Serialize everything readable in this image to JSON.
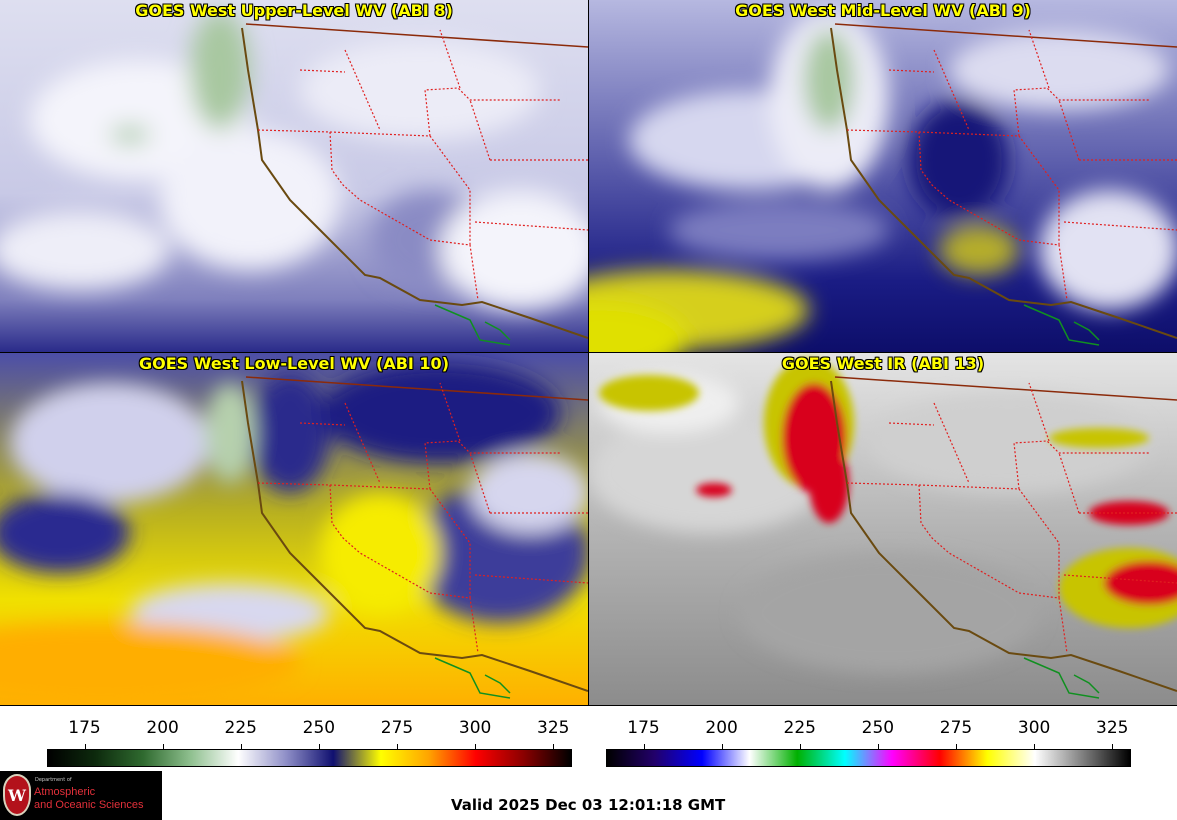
{
  "panels": [
    {
      "title": "GOES West Upper-Level WV (ABI 8)",
      "palette": "wv_upper"
    },
    {
      "title": "GOES West Mid-Level WV (ABI 9)",
      "palette": "wv_mid"
    },
    {
      "title": "GOES West Low-Level WV (ABI 10)",
      "palette": "wv_low"
    },
    {
      "title": "GOES West IR (ABI 13)",
      "palette": "ir"
    }
  ],
  "colorbars": [
    {
      "ticks": [
        "175",
        "200",
        "225",
        "250",
        "275",
        "300",
        "325"
      ],
      "values": [
        175,
        200,
        225,
        250,
        275,
        300,
        325
      ],
      "range": [
        163,
        331
      ],
      "gradient": [
        "#000000",
        "#0d2a0d",
        "#2f6a2f",
        "#8fc08f",
        "#ffffff",
        "#9090c8",
        "#101070",
        "#ffff00",
        "#ffa500",
        "#ff0000",
        "#8b0000",
        "#000000"
      ]
    },
    {
      "ticks": [
        "175",
        "200",
        "225",
        "250",
        "275",
        "300",
        "325"
      ],
      "values": [
        175,
        200,
        225,
        250,
        275,
        300,
        325
      ],
      "range": [
        163,
        331
      ],
      "gradient": [
        "#000000",
        "#22006a",
        "#0000ff",
        "#ffffff",
        "#00b000",
        "#00ffff",
        "#ff00ff",
        "#ff0000",
        "#ffff00",
        "#ffffff",
        "#808080",
        "#000000"
      ]
    }
  ],
  "logo": {
    "dept_line": "Department of",
    "line1": "Atmospheric",
    "line2": "and Oceanic Sciences",
    "seal_letter": "W"
  },
  "valid_time": "Valid 2025 Dec 03 12:01:18 GMT"
}
